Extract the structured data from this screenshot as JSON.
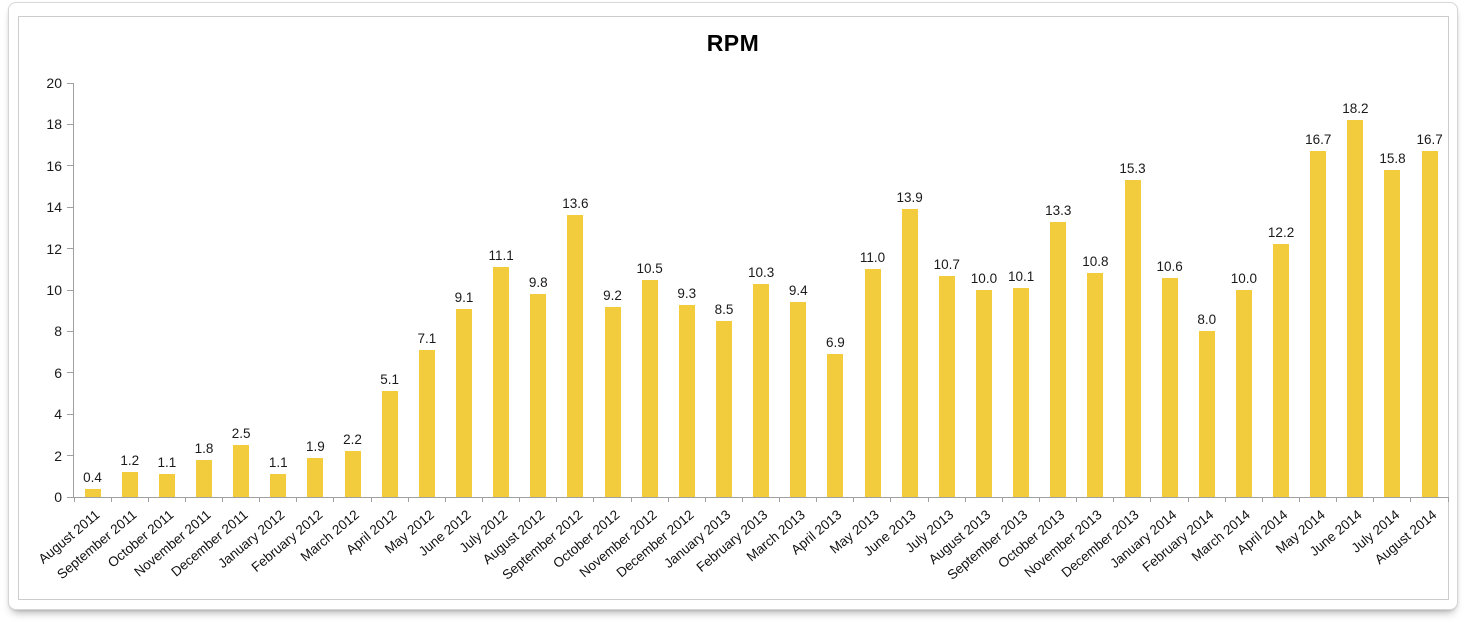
{
  "chart_data": {
    "type": "bar",
    "title": "RPM",
    "categories": [
      "August 2011",
      "September 2011",
      "October 2011",
      "November 2011",
      "December 2011",
      "January 2012",
      "February 2012",
      "March 2012",
      "April 2012",
      "May 2012",
      "June 2012",
      "July 2012",
      "August 2012",
      "September 2012",
      "October 2012",
      "November 2012",
      "December 2012",
      "January 2013",
      "February 2013",
      "March 2013",
      "April 2013",
      "May 2013",
      "June 2013",
      "July 2013",
      "August 2013",
      "September 2013",
      "October 2013",
      "November 2013",
      "December 2013",
      "January 2014",
      "February 2014",
      "March 2014",
      "April 2014",
      "May 2014",
      "June 2014",
      "July 2014",
      "August 2014"
    ],
    "values": [
      0.4,
      1.2,
      1.1,
      1.8,
      2.5,
      1.1,
      1.9,
      2.2,
      5.1,
      7.1,
      9.1,
      11.1,
      9.8,
      13.6,
      9.2,
      10.5,
      9.3,
      8.5,
      10.3,
      9.4,
      6.9,
      11.0,
      13.9,
      10.7,
      10.0,
      10.1,
      13.3,
      10.8,
      15.3,
      10.6,
      8.0,
      10.0,
      12.2,
      16.7,
      18.2,
      15.8,
      16.7
    ],
    "value_label_decimals": 1,
    "xlabel": "",
    "ylabel": "",
    "ylim": [
      0,
      20
    ],
    "yticks": [
      0,
      2,
      4,
      6,
      8,
      10,
      12,
      14,
      16,
      18,
      20
    ],
    "grid": false,
    "legend": false,
    "bar_color": "#F2CC3C",
    "axis_color": "#A0A0A0",
    "text_color": "#1A1A1A"
  }
}
